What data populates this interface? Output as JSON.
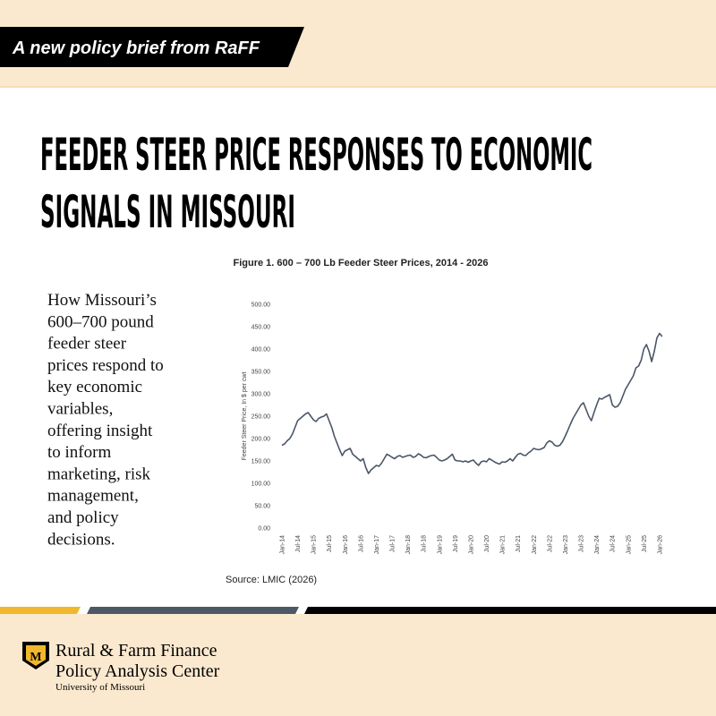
{
  "banner": "A new policy brief from RaFF",
  "title_lines": [
    "FEEDER STEER PRICE RESPONSES TO ECONOMIC",
    "SIGNALS IN MISSOURI"
  ],
  "summary_lines": [
    "How Missouri’s",
    "600–700 pound",
    "feeder steer",
    "prices respond to",
    "key economic",
    "variables,",
    "offering insight",
    "to inform",
    "marketing, risk",
    "management,",
    "and policy",
    "decisions."
  ],
  "chart_data": {
    "type": "line",
    "title": "Figure 1. 600 – 700 Lb Feeder Steer Prices, 2014 - 2026",
    "y_label": "Feeder Steer Price, In $ per cwt",
    "source": "Source: LMIC (2026)",
    "x": [
      "Jan-14",
      "Feb-14",
      "Mar-14",
      "Apr-14",
      "May-14",
      "Jun-14",
      "Jul-14",
      "Aug-14",
      "Sep-14",
      "Oct-14",
      "Nov-14",
      "Dec-14",
      "Jan-15",
      "Feb-15",
      "Mar-15",
      "Apr-15",
      "May-15",
      "Jun-15",
      "Jul-15",
      "Aug-15",
      "Sep-15",
      "Oct-15",
      "Nov-15",
      "Dec-15",
      "Jan-16",
      "Feb-16",
      "Mar-16",
      "Apr-16",
      "May-16",
      "Jun-16",
      "Jul-16",
      "Aug-16",
      "Sep-16",
      "Oct-16",
      "Nov-16",
      "Dec-16",
      "Jan-17",
      "Feb-17",
      "Mar-17",
      "Apr-17",
      "May-17",
      "Jun-17",
      "Jul-17",
      "Aug-17",
      "Sep-17",
      "Oct-17",
      "Nov-17",
      "Dec-17",
      "Jan-18",
      "Feb-18",
      "Mar-18",
      "Apr-18",
      "May-18",
      "Jun-18",
      "Jul-18",
      "Aug-18",
      "Sep-18",
      "Oct-18",
      "Nov-18",
      "Dec-18",
      "Jan-19",
      "Feb-19",
      "Mar-19",
      "Apr-19",
      "May-19",
      "Jun-19",
      "Jul-19",
      "Aug-19",
      "Sep-19",
      "Oct-19",
      "Nov-19",
      "Dec-19",
      "Jan-20",
      "Feb-20",
      "Mar-20",
      "Apr-20",
      "May-20",
      "Jun-20",
      "Jul-20",
      "Aug-20",
      "Sep-20",
      "Oct-20",
      "Nov-20",
      "Dec-20",
      "Jan-21",
      "Feb-21",
      "Mar-21",
      "Apr-21",
      "May-21",
      "Jun-21",
      "Jul-21",
      "Aug-21",
      "Sep-21",
      "Oct-21",
      "Nov-21",
      "Dec-21",
      "Jan-22",
      "Feb-22",
      "Mar-22",
      "Apr-22",
      "May-22",
      "Jun-22",
      "Jul-22",
      "Aug-22",
      "Sep-22",
      "Oct-22",
      "Nov-22",
      "Dec-22",
      "Jan-23",
      "Feb-23",
      "Mar-23",
      "Apr-23",
      "May-23",
      "Jun-23",
      "Jul-23",
      "Aug-23",
      "Sep-23",
      "Oct-23",
      "Nov-23",
      "Dec-23",
      "Jan-24",
      "Feb-24",
      "Mar-24",
      "Apr-24",
      "May-24",
      "Jun-24",
      "Jul-24",
      "Aug-24",
      "Sep-24",
      "Oct-24",
      "Nov-24",
      "Dec-24",
      "Jan-25",
      "Feb-25",
      "Mar-25",
      "Apr-25",
      "May-25",
      "Jun-25",
      "Jul-25",
      "Aug-25",
      "Sep-25",
      "Oct-25",
      "Nov-25",
      "Dec-25",
      "Jan-26",
      "Feb-26"
    ],
    "series": [
      {
        "color": "#4a5668",
        "values": [
          185,
          188,
          195,
          200,
          210,
          225,
          240,
          245,
          250,
          255,
          258,
          250,
          242,
          238,
          245,
          248,
          250,
          255,
          240,
          225,
          205,
          190,
          175,
          162,
          172,
          175,
          178,
          165,
          160,
          155,
          150,
          155,
          135,
          122,
          130,
          135,
          140,
          138,
          145,
          155,
          165,
          162,
          158,
          155,
          160,
          162,
          158,
          160,
          162,
          163,
          158,
          160,
          166,
          163,
          158,
          157,
          160,
          162,
          163,
          158,
          152,
          150,
          152,
          155,
          160,
          165,
          152,
          150,
          150,
          148,
          150,
          147,
          150,
          152,
          145,
          140,
          148,
          150,
          148,
          155,
          152,
          148,
          145,
          143,
          148,
          147,
          150,
          155,
          150,
          158,
          165,
          167,
          163,
          162,
          168,
          172,
          178,
          176,
          175,
          177,
          180,
          190,
          195,
          192,
          185,
          183,
          185,
          193,
          205,
          218,
          232,
          245,
          255,
          265,
          275,
          280,
          265,
          250,
          240,
          258,
          275,
          290,
          288,
          292,
          295,
          298,
          275,
          270,
          272,
          280,
          295,
          310,
          320,
          330,
          340,
          358,
          362,
          375,
          400,
          410,
          395,
          372,
          395,
          425,
          435,
          428
        ]
      }
    ],
    "ylim": [
      0,
      500
    ],
    "yticks": [
      {
        "value": 0,
        "label": "0.00"
      },
      {
        "value": 50,
        "label": "50.00"
      },
      {
        "value": 100,
        "label": "100.00"
      },
      {
        "value": 150,
        "label": "150.00"
      },
      {
        "value": 200,
        "label": "200.00"
      },
      {
        "value": 250,
        "label": "250.00"
      },
      {
        "value": 300,
        "label": "300.00"
      },
      {
        "value": 350,
        "label": "350.00"
      },
      {
        "value": 400,
        "label": "400.00"
      },
      {
        "value": 450,
        "label": "450.00"
      },
      {
        "value": 500,
        "label": "500.00"
      }
    ],
    "xticks": [
      "Jan-14",
      "Jul-14",
      "Jan-15",
      "Jul-15",
      "Jan-16",
      "Jul-16",
      "Jan-17",
      "Jul-17",
      "Jan-18",
      "Jul-18",
      "Jan-19",
      "Jul-19",
      "Jan-20",
      "Jul-20",
      "Jan-21",
      "Jul-21",
      "Jan-22",
      "Jul-22",
      "Jan-23",
      "Jul-23",
      "Jan-24",
      "Jul-24",
      "Jan-25",
      "Jul-25",
      "Jan-26"
    ],
    "grid": false
  },
  "footer": {
    "lines": [
      "Rural & Farm Finance",
      "Policy Analysis Center"
    ],
    "subline": "University of Missouri"
  }
}
